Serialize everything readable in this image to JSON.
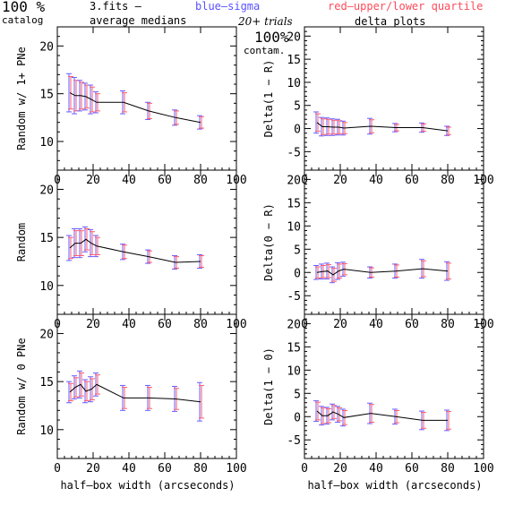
{
  "header": {
    "catalog_pct": "100 %",
    "catalog_label": "catalog",
    "file_label": "3.fits  –",
    "medians_label": "average medians",
    "blue_label": "blue–sigma",
    "red_label": "red–upper/lower quartile",
    "trials_label": "20+ trials",
    "delta_title": "delta plots",
    "contam_pct": "100%",
    "contam_label": "contam."
  },
  "colors": {
    "axis": "#000000",
    "line": "#000000",
    "sigma": "#6a5cff",
    "quartile": "#ff5a6e"
  },
  "chart_data": [
    {
      "type": "line",
      "panel": "left-top",
      "xlabel": "",
      "ylabel": "Random w/ 1+ PNe",
      "xlim": [
        0,
        100
      ],
      "ylim": [
        7,
        22
      ],
      "xticks": [
        0,
        20,
        40,
        60,
        80,
        100
      ],
      "yticks": [
        10,
        15,
        20
      ],
      "x": [
        7,
        10,
        13,
        16,
        19,
        22,
        37,
        51,
        66,
        80
      ],
      "y": [
        15.1,
        14.8,
        14.8,
        14.7,
        14.4,
        14.1,
        14.1,
        13.2,
        12.5,
        12.0
      ],
      "sigma": [
        2.0,
        1.9,
        1.6,
        1.4,
        1.5,
        1.1,
        1.2,
        0.9,
        0.8,
        0.7
      ],
      "quartile": [
        1.7,
        1.6,
        1.4,
        1.2,
        1.3,
        0.9,
        1.0,
        0.8,
        0.7,
        0.6
      ]
    },
    {
      "type": "line",
      "panel": "right-top",
      "xlabel": "",
      "ylabel": "Delta(1 − R)",
      "xlim": [
        0,
        100
      ],
      "ylim": [
        -9,
        22
      ],
      "xticks": [
        0,
        20,
        40,
        60,
        80,
        100
      ],
      "yticks": [
        -5,
        0,
        5,
        10,
        15,
        20
      ],
      "x": [
        7,
        10,
        13,
        16,
        19,
        22,
        37,
        51,
        66,
        80
      ],
      "y": [
        1.3,
        0.4,
        0.4,
        0.3,
        0.3,
        0.1,
        0.5,
        0.2,
        0.2,
        -0.5
      ],
      "sigma": [
        2.3,
        2.0,
        1.9,
        1.8,
        1.7,
        1.5,
        1.7,
        0.9,
        1.0,
        1.0
      ],
      "quartile": [
        1.9,
        1.7,
        1.6,
        1.5,
        1.4,
        1.2,
        1.4,
        0.7,
        0.8,
        0.8
      ]
    },
    {
      "type": "line",
      "panel": "left-middle",
      "xlabel": "",
      "ylabel": "Random",
      "xlim": [
        0,
        100
      ],
      "ylim": [
        7,
        22
      ],
      "xticks": [
        0,
        20,
        40,
        60,
        80,
        100
      ],
      "yticks": [
        10,
        15,
        20
      ],
      "x": [
        7,
        10,
        13,
        16,
        19,
        22,
        37,
        51,
        66,
        80
      ],
      "y": [
        13.9,
        14.4,
        14.4,
        14.8,
        14.4,
        14.1,
        13.5,
        13.0,
        12.4,
        12.5
      ],
      "sigma": [
        1.3,
        1.5,
        1.5,
        1.3,
        1.4,
        1.1,
        0.8,
        0.7,
        0.7,
        0.7
      ],
      "quartile": [
        1.1,
        1.3,
        1.3,
        1.1,
        1.2,
        0.9,
        0.7,
        0.6,
        0.6,
        0.6
      ]
    },
    {
      "type": "line",
      "panel": "right-middle",
      "xlabel": "",
      "ylabel": "Delta(0 − R)",
      "xlim": [
        0,
        100
      ],
      "ylim": [
        -9,
        22
      ],
      "xticks": [
        0,
        20,
        40,
        60,
        80,
        100
      ],
      "yticks": [
        -5,
        0,
        5,
        10,
        15,
        20
      ],
      "x": [
        7,
        10,
        13,
        16,
        19,
        22,
        37,
        51,
        66,
        80
      ],
      "y": [
        0.0,
        0.2,
        0.3,
        -0.5,
        0.3,
        0.7,
        0.0,
        0.3,
        0.8,
        0.3
      ],
      "sigma": [
        1.5,
        1.6,
        1.7,
        1.7,
        1.8,
        1.5,
        1.2,
        1.5,
        2.0,
        2.0
      ],
      "quartile": [
        1.2,
        1.3,
        1.4,
        1.4,
        1.5,
        1.2,
        1.0,
        1.3,
        1.7,
        1.7
      ]
    },
    {
      "type": "line",
      "panel": "left-bottom",
      "xlabel": "half–box width (arcseconds)",
      "ylabel": "Random w/ 0 PNe",
      "xlim": [
        0,
        100
      ],
      "ylim": [
        7,
        22
      ],
      "xticks": [
        0,
        20,
        40,
        60,
        80,
        100
      ],
      "yticks": [
        10,
        15,
        20
      ],
      "x": [
        7,
        10,
        13,
        16,
        19,
        22,
        37,
        51,
        66,
        80
      ],
      "y": [
        13.9,
        14.4,
        14.7,
        14.0,
        14.2,
        14.7,
        13.3,
        13.3,
        13.2,
        12.9
      ],
      "sigma": [
        1.1,
        1.2,
        1.4,
        1.2,
        1.3,
        1.2,
        1.3,
        1.3,
        1.3,
        2.0
      ],
      "quartile": [
        0.9,
        1.0,
        1.2,
        1.0,
        1.1,
        1.0,
        1.1,
        1.1,
        1.1,
        1.7
      ]
    },
    {
      "type": "line",
      "panel": "right-bottom",
      "xlabel": "half–box width (arcseconds)",
      "ylabel": "Delta(1 − 0)",
      "xlim": [
        0,
        100
      ],
      "ylim": [
        -9,
        22
      ],
      "xticks": [
        0,
        20,
        40,
        60,
        80,
        100
      ],
      "yticks": [
        -5,
        0,
        5,
        10,
        15,
        20
      ],
      "x": [
        7,
        10,
        13,
        16,
        19,
        22,
        37,
        51,
        66,
        80
      ],
      "y": [
        1.2,
        0.2,
        0.2,
        1.0,
        0.5,
        -0.2,
        0.7,
        0.0,
        -0.8,
        -0.8
      ],
      "sigma": [
        2.2,
        2.0,
        1.8,
        1.7,
        1.7,
        1.8,
        2.2,
        1.6,
        2.0,
        2.2
      ],
      "quartile": [
        1.9,
        1.7,
        1.5,
        1.4,
        1.4,
        1.5,
        1.9,
        1.3,
        1.7,
        1.9
      ]
    }
  ]
}
